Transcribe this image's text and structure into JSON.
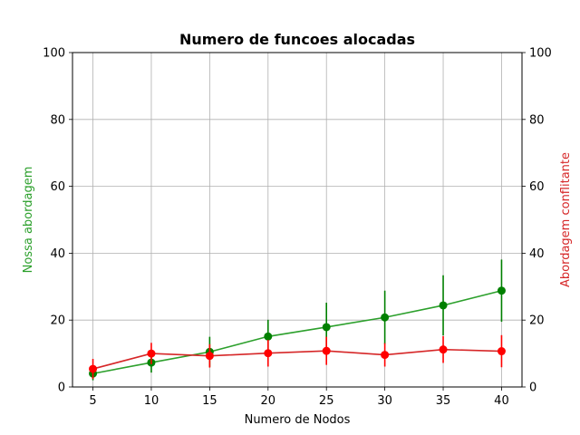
{
  "chart_data": {
    "type": "line",
    "title": "Numero de funcoes alocadas",
    "xlabel": "Numero de Nodos",
    "ylabel_left": "Nossa abordagem",
    "ylabel_right": "Abordagem conflitante",
    "x": [
      5,
      10,
      15,
      20,
      25,
      30,
      35,
      40
    ],
    "xlim": [
      3.25,
      41.75
    ],
    "ylim": [
      0,
      100
    ],
    "yticks": [
      0,
      20,
      40,
      60,
      80,
      100
    ],
    "grid": true,
    "series": [
      {
        "axis": "left",
        "line_color": "#2ca02c",
        "marker_color": "#008000",
        "errorbar_color": "#008000",
        "values": [
          4.0,
          7.3,
          10.5,
          15.1,
          17.9,
          20.8,
          24.4,
          28.8
        ],
        "errors": [
          2.0,
          3.0,
          4.5,
          5.0,
          7.3,
          8.0,
          9.0,
          9.3
        ]
      },
      {
        "axis": "right",
        "line_color": "#d62728",
        "marker_color": "#ff0000",
        "errorbar_color": "#ff0000",
        "values": [
          5.4,
          10.0,
          9.3,
          10.1,
          10.8,
          9.6,
          11.2,
          10.7
        ],
        "errors": [
          3.0,
          3.2,
          3.5,
          4.0,
          4.2,
          3.5,
          4.0,
          4.8
        ]
      }
    ],
    "colors": {
      "left_axis_label": "#2ca02c",
      "right_axis_label": "#d62728",
      "grid": "#b0b0b0"
    }
  }
}
